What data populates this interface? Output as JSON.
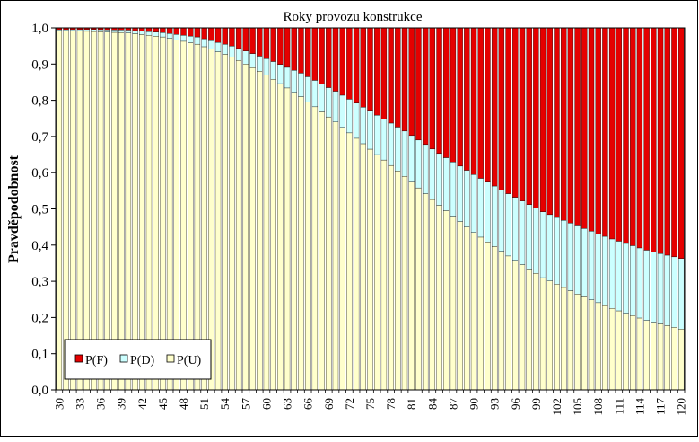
{
  "chart_data": {
    "type": "bar",
    "stacked": true,
    "title": "Roky provozu konstrukce",
    "xlabel": "",
    "ylabel": "Pravděpodobnost",
    "ylim": [
      0,
      1
    ],
    "yticks": [
      "0,0",
      "0,1",
      "0,2",
      "0,3",
      "0,4",
      "0,5",
      "0,6",
      "0,7",
      "0,8",
      "0,9",
      "1,0"
    ],
    "x_start": 30,
    "x_end": 120,
    "xtick_labels": [
      "30",
      "33",
      "36",
      "39",
      "42",
      "45",
      "48",
      "51",
      "54",
      "57",
      "60",
      "63",
      "66",
      "69",
      "72",
      "75",
      "78",
      "81",
      "84",
      "87",
      "90",
      "93",
      "96",
      "99",
      "102",
      "105",
      "108",
      "111",
      "114",
      "117",
      "120"
    ],
    "grid": false,
    "legend_position": "bottom-left",
    "series": [
      {
        "name": "P(F)",
        "color": "#e50000",
        "description": "Remaining share up to 1.0 (1 - P(U) - P(D))"
      },
      {
        "name": "P(D)",
        "color": "#ccffff",
        "anchor_x": [
          30,
          40,
          45,
          50,
          55,
          60,
          65,
          70,
          75,
          80,
          85,
          90,
          95,
          100,
          105,
          110,
          115,
          120
        ],
        "anchor_values": [
          0.003,
          0.008,
          0.012,
          0.02,
          0.03,
          0.045,
          0.065,
          0.085,
          0.105,
          0.125,
          0.143,
          0.16,
          0.172,
          0.182,
          0.188,
          0.192,
          0.194,
          0.195
        ]
      },
      {
        "name": "P(U)",
        "color": "#ffffcc",
        "anchor_x": [
          30,
          35,
          40,
          45,
          50,
          55,
          60,
          65,
          70,
          75,
          80,
          85,
          90,
          95,
          100,
          105,
          110,
          115,
          120
        ],
        "anchor_values": [
          0.992,
          0.99,
          0.986,
          0.975,
          0.955,
          0.92,
          0.87,
          0.81,
          0.74,
          0.665,
          0.59,
          0.51,
          0.435,
          0.37,
          0.31,
          0.265,
          0.225,
          0.192,
          0.168
        ]
      }
    ]
  }
}
